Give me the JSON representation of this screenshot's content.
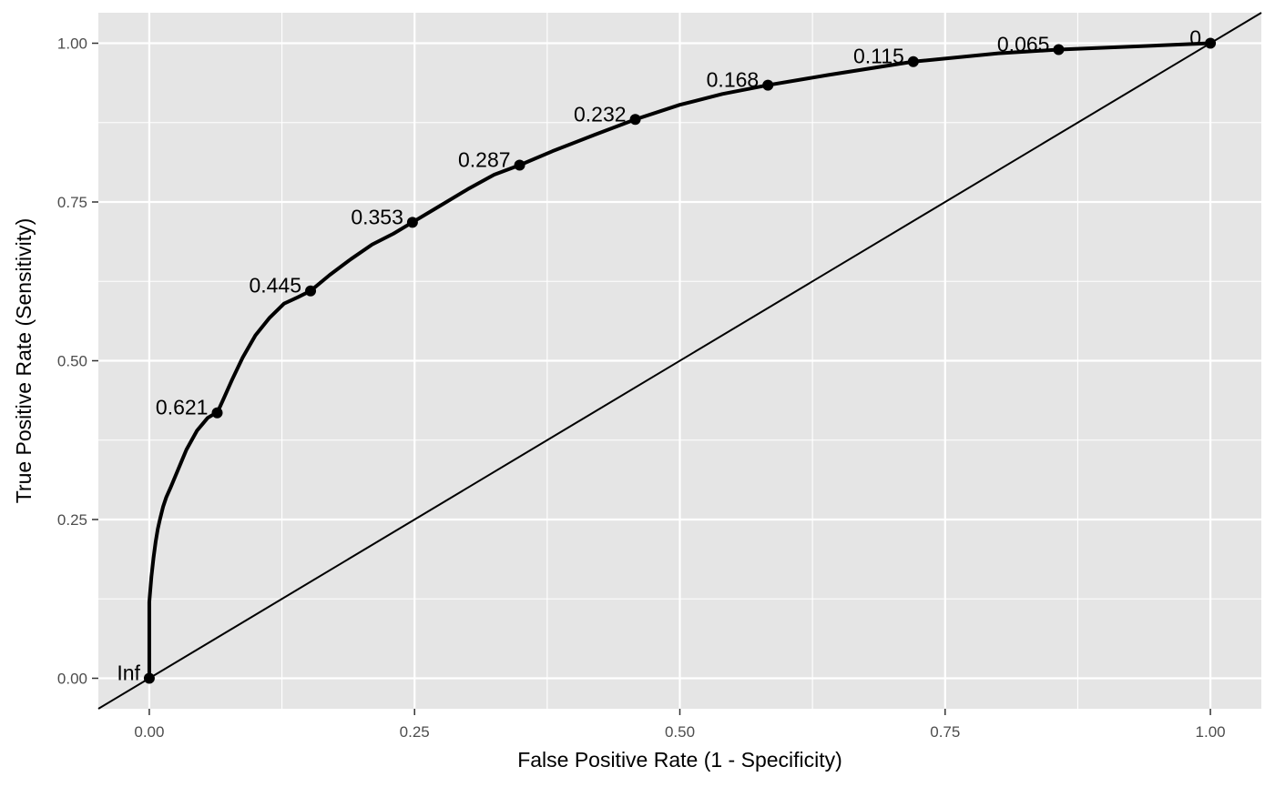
{
  "chart_data": {
    "type": "line",
    "title": "",
    "xlabel": "False Positive Rate (1 - Specificity)",
    "ylabel": "True Positive Rate (Sensitivity)",
    "xlim": [
      -0.048,
      1.048
    ],
    "ylim": [
      -0.048,
      1.048
    ],
    "x_ticks": [
      0,
      0.25,
      0.5,
      0.75,
      1
    ],
    "x_tick_labels": [
      "0.00",
      "0.25",
      "0.50",
      "0.75",
      "1.00"
    ],
    "y_ticks": [
      0,
      0.25,
      0.5,
      0.75,
      1
    ],
    "y_tick_labels": [
      "0.00",
      "0.25",
      "0.50",
      "0.75",
      "1.00"
    ],
    "grid": true,
    "legend": "none",
    "colors": {
      "panel": "#e5e5e5",
      "grid": "#ffffff",
      "curve": "#000000",
      "tick_text": "#4d4d4d"
    },
    "reference_line": {
      "slope": 1,
      "intercept": 0
    },
    "series": [
      {
        "values_x": [
          0,
          0,
          0.002,
          0.004,
          0.006,
          0.008,
          0.01,
          0.013,
          0.016,
          0.02,
          0.025,
          0.03,
          0.035,
          0.04,
          0.045,
          0.05,
          0.055,
          0.06,
          0.064,
          0.07,
          0.078,
          0.088,
          0.1,
          0.113,
          0.127,
          0.14,
          0.152,
          0.17,
          0.19,
          0.21,
          0.23,
          0.248,
          0.27,
          0.3,
          0.325,
          0.349,
          0.38,
          0.42,
          0.458,
          0.5,
          0.54,
          0.583,
          0.64,
          0.72,
          0.8,
          0.857,
          0.93,
          1
        ],
        "values_y": [
          0,
          0.12,
          0.16,
          0.19,
          0.215,
          0.235,
          0.25,
          0.27,
          0.285,
          0.3,
          0.32,
          0.34,
          0.36,
          0.375,
          0.39,
          0.4,
          0.41,
          0.415,
          0.418,
          0.44,
          0.47,
          0.505,
          0.54,
          0.567,
          0.59,
          0.6,
          0.61,
          0.635,
          0.66,
          0.683,
          0.7,
          0.718,
          0.74,
          0.77,
          0.793,
          0.808,
          0.83,
          0.856,
          0.88,
          0.903,
          0.92,
          0.934,
          0.95,
          0.971,
          0.984,
          0.99,
          0.995,
          1
        ]
      }
    ],
    "threshold_points": [
      {
        "x": 0,
        "y": 0,
        "label": "Inf"
      },
      {
        "x": 0.064,
        "y": 0.418,
        "label": "0.621"
      },
      {
        "x": 0.152,
        "y": 0.61,
        "label": "0.445"
      },
      {
        "x": 0.248,
        "y": 0.718,
        "label": "0.353"
      },
      {
        "x": 0.349,
        "y": 0.808,
        "label": "0.287"
      },
      {
        "x": 0.458,
        "y": 0.88,
        "label": "0.232"
      },
      {
        "x": 0.583,
        "y": 0.934,
        "label": "0.168"
      },
      {
        "x": 0.72,
        "y": 0.971,
        "label": "0.115"
      },
      {
        "x": 0.857,
        "y": 0.99,
        "label": "0.065"
      },
      {
        "x": 1,
        "y": 1,
        "label": "0"
      }
    ]
  }
}
